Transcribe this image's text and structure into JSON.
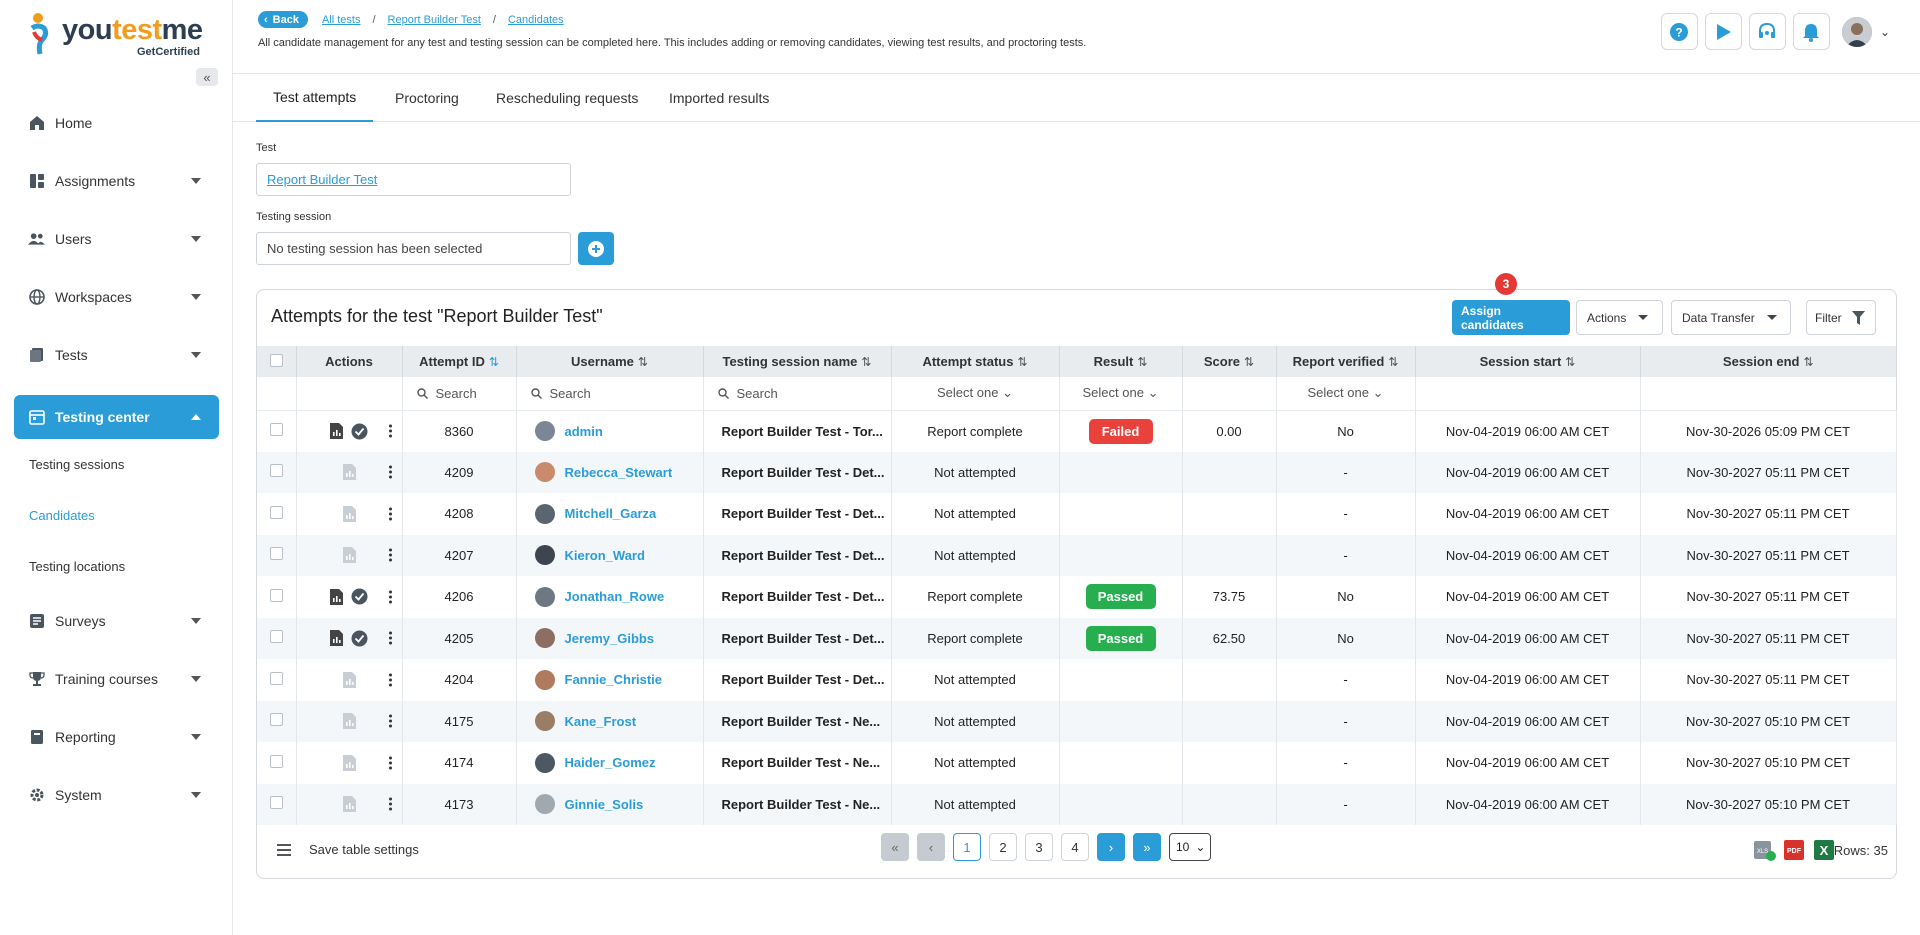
{
  "brand": {
    "name_part1": "you",
    "name_part2": "test",
    "name_part3": "me",
    "tagline": "GetCertified"
  },
  "sidebar": {
    "items": [
      {
        "label": "Home",
        "icon": "home-icon",
        "has_caret": false
      },
      {
        "label": "Assignments",
        "icon": "assignments-icon",
        "has_caret": true
      },
      {
        "label": "Users",
        "icon": "users-icon",
        "has_caret": true
      },
      {
        "label": "Workspaces",
        "icon": "globe-icon",
        "has_caret": true
      },
      {
        "label": "Tests",
        "icon": "tests-icon",
        "has_caret": true
      },
      {
        "label": "Testing center",
        "icon": "calendar-icon",
        "has_caret": true,
        "active": true
      }
    ],
    "sub_items": [
      {
        "label": "Testing sessions"
      },
      {
        "label": "Candidates",
        "selected": true
      },
      {
        "label": "Testing locations"
      }
    ],
    "items_after": [
      {
        "label": "Surveys",
        "icon": "surveys-icon"
      },
      {
        "label": "Training courses",
        "icon": "trophy-icon"
      },
      {
        "label": "Reporting",
        "icon": "reporting-icon"
      },
      {
        "label": "System",
        "icon": "gear-icon"
      }
    ]
  },
  "header": {
    "back_label": "Back",
    "breadcrumbs": [
      "All tests",
      "Report Builder Test",
      "Candidates"
    ],
    "subtitle": "All candidate management for any test and testing session can be completed here. This includes adding or removing candidates, viewing test results, and proctoring tests."
  },
  "tabs": [
    "Test attempts",
    "Proctoring",
    "Rescheduling requests",
    "Imported results"
  ],
  "form": {
    "test_label": "Test",
    "test_value": "Report Builder Test",
    "session_label": "Testing session",
    "session_placeholder": "No testing session has been selected"
  },
  "panel": {
    "title": "Attempts for the test \"Report Builder Test\"",
    "assign_label": "Assign candidates",
    "badge": "3",
    "actions_label": "Actions",
    "transfer_label": "Data Transfer",
    "filter_label": "Filter"
  },
  "table": {
    "headers": [
      "Actions",
      "Attempt ID",
      "Username",
      "Testing session name",
      "Attempt status",
      "Result",
      "Score",
      "Report verified",
      "Session start",
      "Session end"
    ],
    "search_placeholder": "Search",
    "select_placeholder": "Select one",
    "rows": [
      {
        "id": "8360",
        "user": "admin",
        "session": "Report Builder Test - Tor...",
        "status": "Report complete",
        "result": "Failed",
        "score": "0.00",
        "verified": "No",
        "start": "Nov-04-2019 06:00 AM CET",
        "end": "Nov-30-2026 05:09 PM CET",
        "actions": true
      },
      {
        "id": "4209",
        "user": "Rebecca_Stewart",
        "session": "Report Builder Test - Det...",
        "status": "Not attempted",
        "result": "",
        "score": "",
        "verified": "-",
        "start": "Nov-04-2019 06:00 AM CET",
        "end": "Nov-30-2027 05:11 PM CET",
        "actions": false
      },
      {
        "id": "4208",
        "user": "Mitchell_Garza",
        "session": "Report Builder Test - Det...",
        "status": "Not attempted",
        "result": "",
        "score": "",
        "verified": "-",
        "start": "Nov-04-2019 06:00 AM CET",
        "end": "Nov-30-2027 05:11 PM CET",
        "actions": false
      },
      {
        "id": "4207",
        "user": "Kieron_Ward",
        "session": "Report Builder Test - Det...",
        "status": "Not attempted",
        "result": "",
        "score": "",
        "verified": "-",
        "start": "Nov-04-2019 06:00 AM CET",
        "end": "Nov-30-2027 05:11 PM CET",
        "actions": false
      },
      {
        "id": "4206",
        "user": "Jonathan_Rowe",
        "session": "Report Builder Test - Det...",
        "status": "Report complete",
        "result": "Passed",
        "score": "73.75",
        "verified": "No",
        "start": "Nov-04-2019 06:00 AM CET",
        "end": "Nov-30-2027 05:11 PM CET",
        "actions": true
      },
      {
        "id": "4205",
        "user": "Jeremy_Gibbs",
        "session": "Report Builder Test - Det...",
        "status": "Report complete",
        "result": "Passed",
        "score": "62.50",
        "verified": "No",
        "start": "Nov-04-2019 06:00 AM CET",
        "end": "Nov-30-2027 05:11 PM CET",
        "actions": true
      },
      {
        "id": "4204",
        "user": "Fannie_Christie",
        "session": "Report Builder Test - Det...",
        "status": "Not attempted",
        "result": "",
        "score": "",
        "verified": "-",
        "start": "Nov-04-2019 06:00 AM CET",
        "end": "Nov-30-2027 05:11 PM CET",
        "actions": false
      },
      {
        "id": "4175",
        "user": "Kane_Frost",
        "session": "Report Builder Test - Ne...",
        "status": "Not attempted",
        "result": "",
        "score": "",
        "verified": "-",
        "start": "Nov-04-2019 06:00 AM CET",
        "end": "Nov-30-2027 05:10 PM CET",
        "actions": false
      },
      {
        "id": "4174",
        "user": "Haider_Gomez",
        "session": "Report Builder Test - Ne...",
        "status": "Not attempted",
        "result": "",
        "score": "",
        "verified": "-",
        "start": "Nov-04-2019 06:00 AM CET",
        "end": "Nov-30-2027 05:10 PM CET",
        "actions": false
      },
      {
        "id": "4173",
        "user": "Ginnie_Solis",
        "session": "Report Builder Test - Ne...",
        "status": "Not attempted",
        "result": "",
        "score": "",
        "verified": "-",
        "start": "Nov-04-2019 06:00 AM CET",
        "end": "Nov-30-2027 05:10 PM CET",
        "actions": false
      }
    ]
  },
  "footer": {
    "save_settings": "Save table settings",
    "pages": [
      "1",
      "2",
      "3",
      "4"
    ],
    "page_size": "10",
    "rows_label": "Rows: 35"
  },
  "colors": {
    "accent": "#2a9cd8",
    "failed": "#e9413b",
    "passed": "#27ae4f"
  }
}
